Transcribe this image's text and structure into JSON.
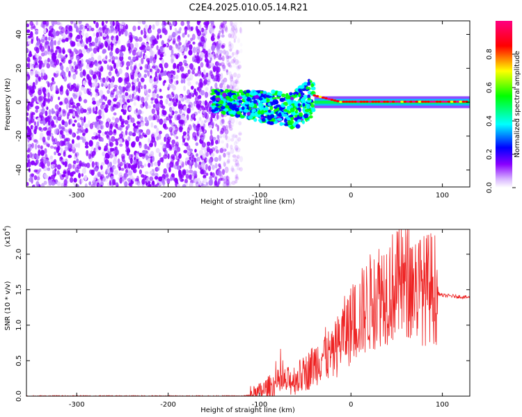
{
  "title": "C2E4.2025.010.05.14.R21",
  "chart_data": [
    {
      "type": "heatmap",
      "xlabel": "Height of straight line (km)",
      "ylabel": "Frequency (Hz)",
      "xlim": [
        -355,
        130
      ],
      "ylim": [
        -50,
        48
      ],
      "xticks": [
        -300,
        -200,
        -100,
        0,
        100
      ],
      "yticks": [
        -40,
        -20,
        0,
        20,
        40
      ],
      "colorbar": {
        "label": "Normalized spectral amplitude",
        "range": [
          0,
          1
        ],
        "ticks": [
          "0.0",
          "0.2",
          "0.4",
          "0.6",
          "0.8"
        ],
        "colors": [
          "#ffffff",
          "#8a00ff",
          "#0000ff",
          "#00ffff",
          "#00ff00",
          "#ffff00",
          "#ff0000",
          "#ff0080"
        ]
      },
      "regions": [
        {
          "x": [
            -355,
            -130
          ],
          "freq": [
            -50,
            48
          ],
          "amplitude": 0.1
        },
        {
          "x": [
            -150,
            -40
          ],
          "freq": [
            -10,
            8
          ],
          "amplitude": 0.3
        },
        {
          "x": [
            -40,
            130
          ],
          "freq": [
            -2,
            3
          ],
          "amplitude": 0.8
        }
      ]
    },
    {
      "type": "line",
      "xlabel": "Height of straight line (km)",
      "ylabel": "SNR (10 * v/v)",
      "yscale_label": "(x10",
      "yscale_exp": "4",
      "scale": 10000,
      "xlim": [
        -355,
        130
      ],
      "ylim": [
        0,
        2.35
      ],
      "xticks": [
        -300,
        -200,
        -100,
        0,
        100
      ],
      "yticks": [
        "0.0",
        "0.5",
        "1.0",
        "1.5",
        "2.0"
      ],
      "series": [
        {
          "color": "#ee2222",
          "x": [
            -355,
            -300,
            -200,
            -120,
            -105,
            -100,
            -90,
            -80,
            -70,
            -60,
            -50,
            -40,
            -30,
            -20,
            -10,
            0,
            10,
            20,
            30,
            40,
            50,
            60,
            70,
            80,
            90,
            95,
            100,
            110,
            120,
            130
          ],
          "y": [
            0.0,
            0.0,
            0.0,
            0.0,
            0.02,
            0.05,
            0.12,
            0.18,
            0.2,
            0.25,
            0.32,
            0.45,
            0.6,
            0.55,
            0.85,
            1.0,
            1.15,
            1.3,
            1.45,
            1.52,
            1.55,
            1.6,
            1.55,
            1.5,
            1.55,
            1.45,
            1.42,
            1.41,
            1.4,
            1.39
          ]
        }
      ]
    }
  ]
}
